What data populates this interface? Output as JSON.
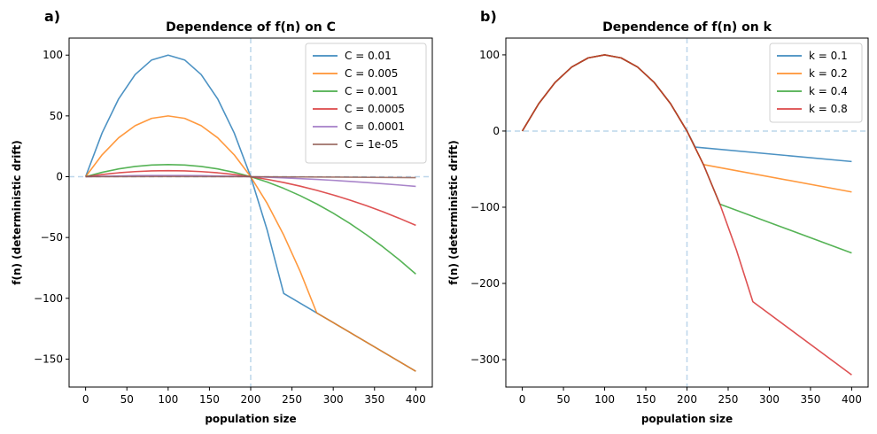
{
  "chart_data": [
    {
      "type": "line",
      "panel_label": "a)",
      "title": "Dependence of f(n) on C",
      "xlabel": "population size",
      "ylabel": "f(n) (deterministic drift)",
      "xlim": [
        -20,
        420
      ],
      "ylim": [
        -173,
        114
      ],
      "xticks": [
        0,
        50,
        100,
        150,
        200,
        250,
        300,
        350,
        400
      ],
      "yticks": [
        -150,
        -100,
        -50,
        0,
        50,
        100
      ],
      "ytick_labels": [
        "−150",
        "−100",
        "−50",
        "0",
        "50",
        "100"
      ],
      "vline": 200,
      "hline": 0,
      "legend_position": "upper-right",
      "series": [
        {
          "name": "C = 0.01",
          "color": "#1f77b4",
          "x": [
            0,
            20,
            40,
            60,
            80,
            100,
            120,
            140,
            160,
            180,
            200,
            220,
            240,
            260,
            280,
            300,
            320,
            340,
            360,
            380,
            400
          ],
          "y": [
            0,
            36,
            64,
            84,
            96,
            100,
            96,
            84,
            64,
            36,
            0,
            -44,
            -96,
            -104,
            -112,
            -120,
            -128,
            -136,
            -144,
            -152,
            -160
          ]
        },
        {
          "name": "C = 0.005",
          "color": "#ff7f0e",
          "x": [
            0,
            20,
            40,
            60,
            80,
            100,
            120,
            140,
            160,
            180,
            200,
            220,
            240,
            260,
            280,
            300,
            320,
            340,
            360,
            380,
            400
          ],
          "y": [
            0,
            18,
            32,
            42,
            48,
            50,
            48,
            42,
            32,
            18,
            0,
            -22,
            -48,
            -78,
            -112,
            -120,
            -128,
            -136,
            -144,
            -152,
            -160
          ]
        },
        {
          "name": "C = 0.001",
          "color": "#2ca02c",
          "x": [
            0,
            20,
            40,
            60,
            80,
            100,
            120,
            140,
            160,
            180,
            200,
            220,
            240,
            260,
            280,
            300,
            320,
            340,
            360,
            380,
            400
          ],
          "y": [
            0,
            3.6,
            6.4,
            8.4,
            9.6,
            10,
            9.6,
            8.4,
            6.4,
            3.6,
            0,
            -4.4,
            -9.6,
            -15.6,
            -22.4,
            -30,
            -38.4,
            -47.6,
            -57.6,
            -68.4,
            -80
          ]
        },
        {
          "name": "C = 0.0005",
          "color": "#d62728",
          "x": [
            0,
            20,
            40,
            60,
            80,
            100,
            120,
            140,
            160,
            180,
            200,
            220,
            240,
            260,
            280,
            300,
            320,
            340,
            360,
            380,
            400
          ],
          "y": [
            0,
            1.8,
            3.2,
            4.2,
            4.8,
            5,
            4.8,
            4.2,
            3.2,
            1.8,
            0,
            -2.2,
            -4.8,
            -7.8,
            -11.2,
            -15,
            -19.2,
            -23.8,
            -28.8,
            -34.2,
            -40
          ]
        },
        {
          "name": "C = 0.0001",
          "color": "#9467bd",
          "x": [
            0,
            20,
            40,
            60,
            80,
            100,
            120,
            140,
            160,
            180,
            200,
            220,
            240,
            260,
            280,
            300,
            320,
            340,
            360,
            380,
            400
          ],
          "y": [
            0,
            0.36,
            0.64,
            0.84,
            0.96,
            1,
            0.96,
            0.84,
            0.64,
            0.36,
            0,
            -0.44,
            -0.96,
            -1.56,
            -2.24,
            -3,
            -3.84,
            -4.76,
            -5.76,
            -6.84,
            -8
          ]
        },
        {
          "name": "C = 1e-05",
          "color": "#8c564b",
          "x": [
            0,
            100,
            200,
            300,
            400
          ],
          "y": [
            0,
            0.1,
            0,
            -0.3,
            -0.8
          ]
        }
      ]
    },
    {
      "type": "line",
      "panel_label": "b)",
      "title": "Dependence of f(n) on k",
      "xlabel": "population size",
      "ylabel": "f(n) (deterministic drift)",
      "xlim": [
        -20,
        420
      ],
      "ylim": [
        -336,
        122
      ],
      "xticks": [
        0,
        50,
        100,
        150,
        200,
        250,
        300,
        350,
        400
      ],
      "yticks": [
        -300,
        -200,
        -100,
        0,
        100
      ],
      "ytick_labels": [
        "−300",
        "−200",
        "−100",
        "0",
        "100"
      ],
      "vline": 200,
      "hline": 0,
      "legend_position": "upper-right",
      "series": [
        {
          "name": "k = 0.1",
          "color": "#1f77b4",
          "x": [
            0,
            20,
            40,
            60,
            80,
            100,
            120,
            140,
            160,
            180,
            200,
            210,
            400
          ],
          "y": [
            0,
            36,
            64,
            84,
            96,
            100,
            96,
            84,
            64,
            36,
            0,
            -21,
            -40
          ]
        },
        {
          "name": "k = 0.2",
          "color": "#ff7f0e",
          "x": [
            0,
            20,
            40,
            60,
            80,
            100,
            120,
            140,
            160,
            180,
            200,
            220,
            400
          ],
          "y": [
            0,
            36,
            64,
            84,
            96,
            100,
            96,
            84,
            64,
            36,
            0,
            -44,
            -80
          ]
        },
        {
          "name": "k = 0.4",
          "color": "#2ca02c",
          "x": [
            0,
            20,
            40,
            60,
            80,
            100,
            120,
            140,
            160,
            180,
            200,
            220,
            240,
            400
          ],
          "y": [
            0,
            36,
            64,
            84,
            96,
            100,
            96,
            84,
            64,
            36,
            0,
            -44,
            -96,
            -160
          ]
        },
        {
          "name": "k = 0.8",
          "color": "#d62728",
          "x": [
            0,
            20,
            40,
            60,
            80,
            100,
            120,
            140,
            160,
            180,
            200,
            220,
            240,
            260,
            280,
            400
          ],
          "y": [
            0,
            36,
            64,
            84,
            96,
            100,
            96,
            84,
            64,
            36,
            0,
            -44,
            -96,
            -156,
            -224,
            -320
          ]
        }
      ]
    }
  ]
}
